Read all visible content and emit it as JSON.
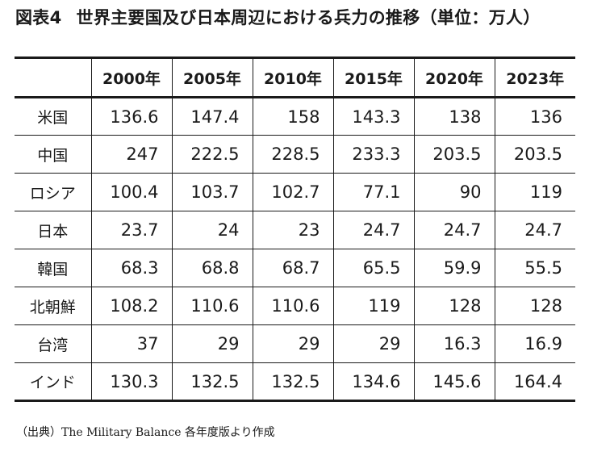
{
  "title": {
    "label": "図表4",
    "text": "世界主要国及び日本周辺における兵力の推移（単位：万人）"
  },
  "table": {
    "headers": [
      "",
      "2000年",
      "2005年",
      "2010年",
      "2015年",
      "2020年",
      "2023年"
    ],
    "rows": [
      {
        "country": "米国",
        "values": [
          "136.6",
          "147.4",
          "158",
          "143.3",
          "138",
          "136"
        ]
      },
      {
        "country": "中国",
        "values": [
          "247",
          "222.5",
          "228.5",
          "233.3",
          "203.5",
          "203.5"
        ]
      },
      {
        "country": "ロシア",
        "values": [
          "100.4",
          "103.7",
          "102.7",
          "77.1",
          "90",
          "119"
        ]
      },
      {
        "country": "日本",
        "values": [
          "23.7",
          "24",
          "23",
          "24.7",
          "24.7",
          "24.7"
        ]
      },
      {
        "country": "韓国",
        "values": [
          "68.3",
          "68.8",
          "68.7",
          "65.5",
          "59.9",
          "55.5"
        ]
      },
      {
        "country": "北朝鮮",
        "values": [
          "108.2",
          "110.6",
          "110.6",
          "119",
          "128",
          "128"
        ]
      },
      {
        "country": "台湾",
        "values": [
          "37",
          "29",
          "29",
          "29",
          "16.3",
          "16.9"
        ]
      },
      {
        "country": "インド",
        "values": [
          "130.3",
          "132.5",
          "132.5",
          "134.6",
          "145.6",
          "164.4"
        ]
      }
    ]
  },
  "source": "（出典）The Military Balance 各年度版より作成"
}
